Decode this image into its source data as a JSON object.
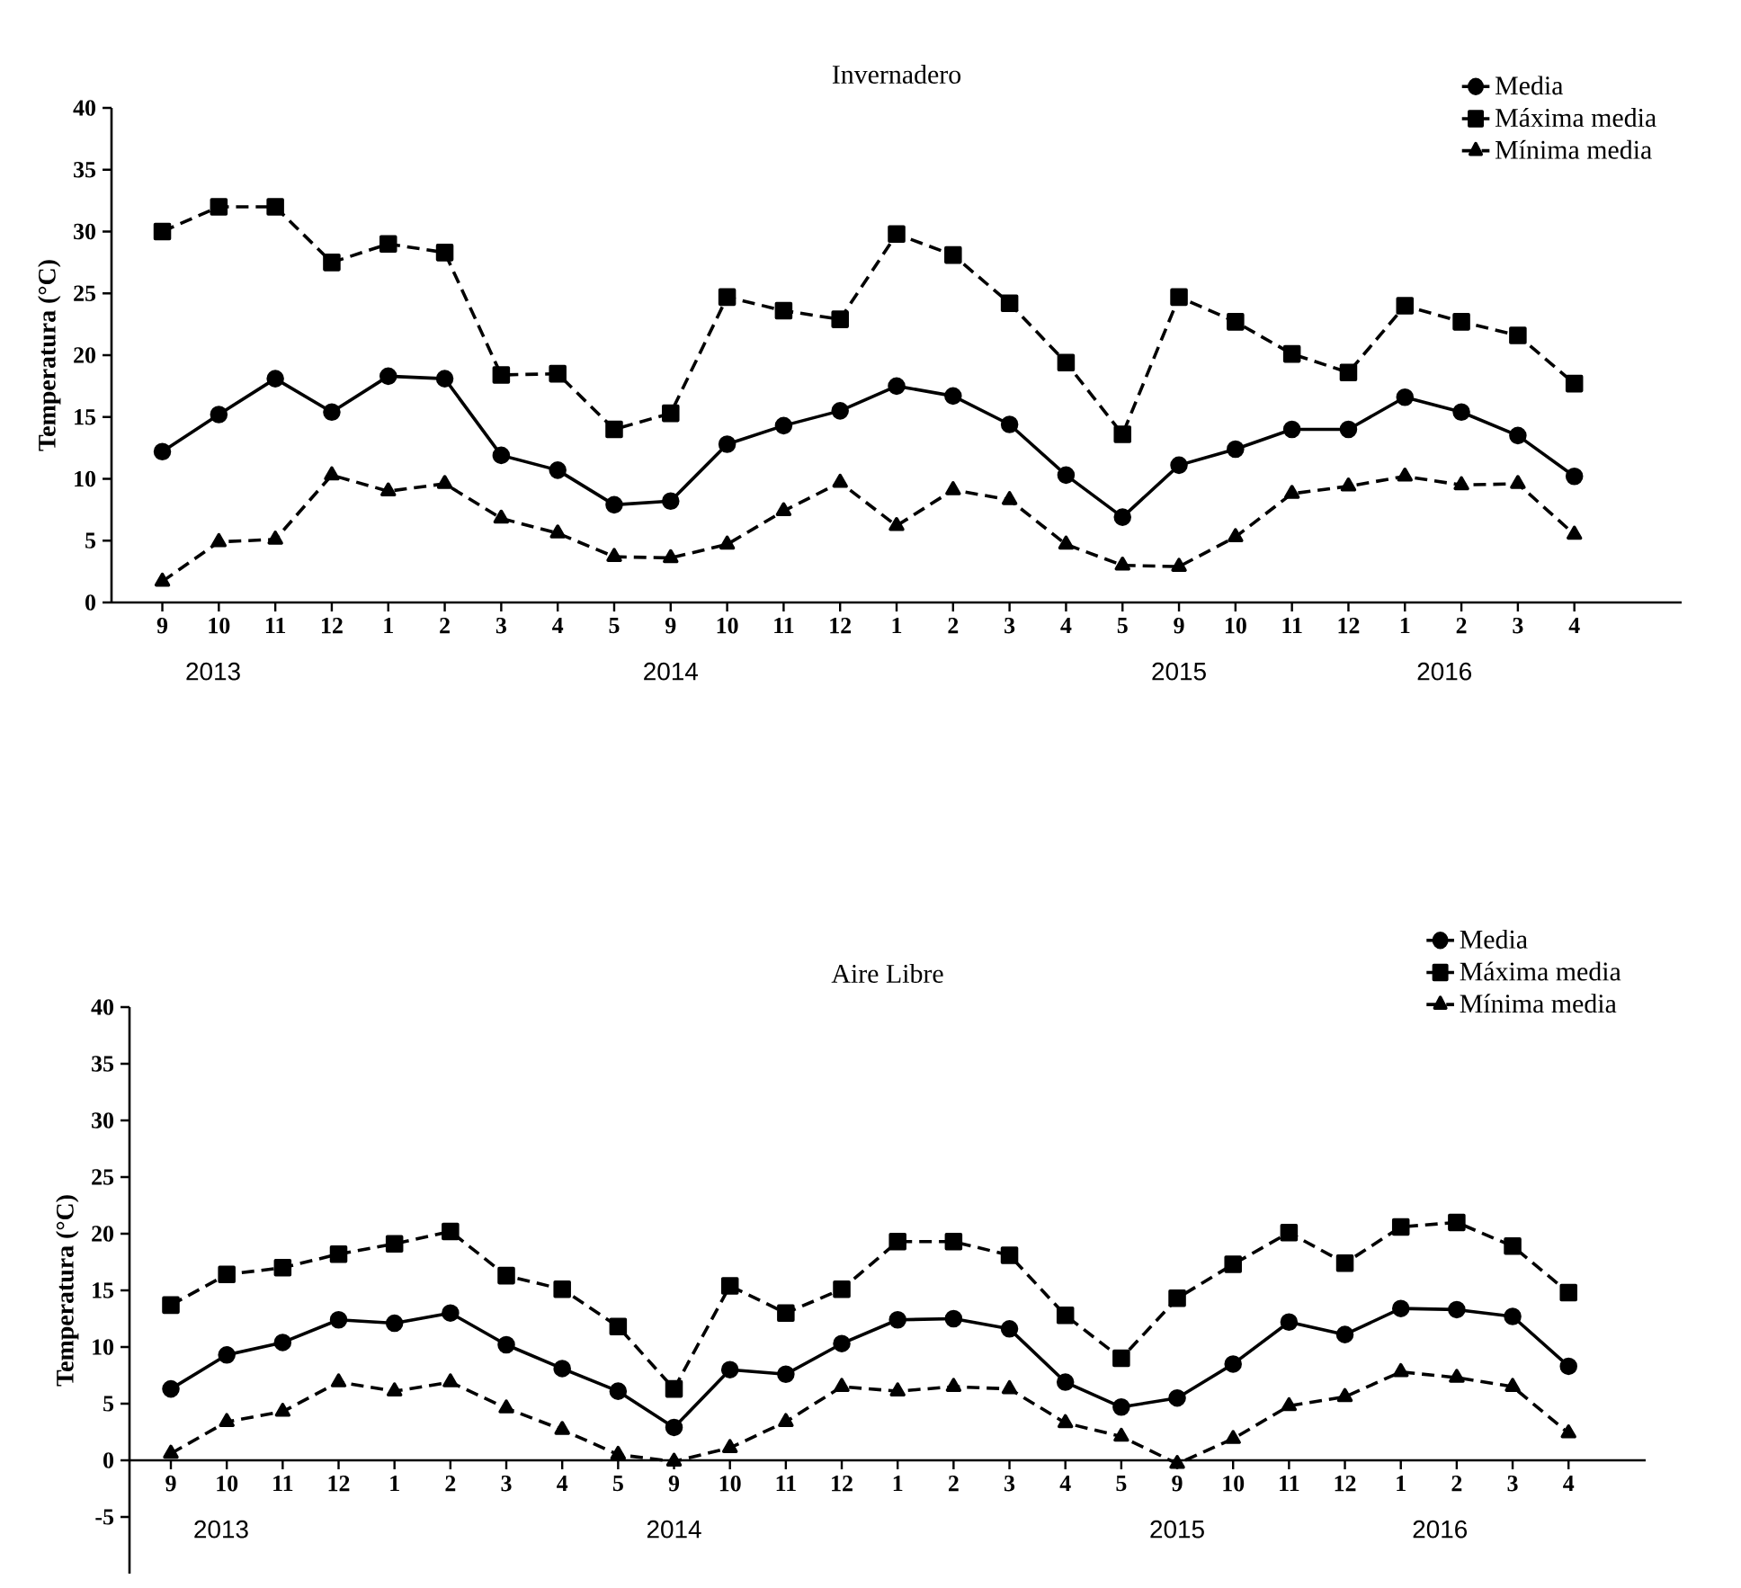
{
  "chart_data": [
    {
      "type": "line",
      "title": "Invernadero",
      "ylabel": "Temperatura (°C)",
      "categories": [
        "9",
        "10",
        "11",
        "12",
        "1",
        "2",
        "3",
        "4",
        "5",
        "9",
        "10",
        "11",
        "12",
        "1",
        "2",
        "3",
        "4",
        "5",
        "9",
        "10",
        "11",
        "12",
        "1",
        "2",
        "3",
        "4"
      ],
      "ylim": [
        0,
        40
      ],
      "yticks": [
        0,
        5,
        10,
        15,
        20,
        25,
        30,
        35,
        40
      ],
      "legend": "top right",
      "annotations": [
        "2013",
        "2014",
        "2015",
        "2016"
      ],
      "series": [
        {
          "name": "Media",
          "color": "#000000",
          "marker": "circle",
          "line_style": "solid",
          "values": [
            12.2,
            15.2,
            18.1,
            15.4,
            18.3,
            18.1,
            11.9,
            10.7,
            7.9,
            8.2,
            12.8,
            14.3,
            15.5,
            17.5,
            16.7,
            14.4,
            10.3,
            6.9,
            11.1,
            12.4,
            14.0,
            14.0,
            16.6,
            15.4,
            13.5,
            10.2
          ]
        },
        {
          "name": "Máxima media",
          "color": "#000000",
          "marker": "square",
          "line_style": "dashed",
          "values": [
            30,
            32,
            32,
            27.5,
            29,
            28.3,
            18.4,
            18.5,
            14,
            15.3,
            24.7,
            23.6,
            22.9,
            29.8,
            28.1,
            24.2,
            19.4,
            13.6,
            24.7,
            22.7,
            20.1,
            18.6,
            24,
            22.7,
            21.6,
            17.7
          ]
        },
        {
          "name": "Mínima media",
          "color": "#000000",
          "marker": "triangle",
          "line_style": "dashed",
          "values": [
            1.7,
            4.9,
            5.1,
            10.3,
            9,
            9.6,
            6.8,
            5.6,
            3.7,
            3.6,
            4.7,
            7.4,
            9.7,
            6.2,
            9.1,
            8.3,
            4.7,
            3,
            2.9,
            5.3,
            8.8,
            9.4,
            10.2,
            9.5,
            9.6,
            5.5
          ]
        }
      ]
    },
    {
      "type": "line",
      "title": "Aire Libre",
      "ylabel": "Temperatura (°C)",
      "categories": [
        "9",
        "10",
        "11",
        "12",
        "1",
        "2",
        "3",
        "4",
        "5",
        "9",
        "10",
        "11",
        "12",
        "1",
        "2",
        "3",
        "4",
        "5",
        "9",
        "10",
        "11",
        "12",
        "1",
        "2",
        "3",
        "4"
      ],
      "ylim": [
        -10,
        40
      ],
      "yticks": [
        -5,
        0,
        5,
        10,
        15,
        20,
        25,
        30,
        35,
        40
      ],
      "legend": "top right",
      "annotations": [
        "2013",
        "2014",
        "2015",
        "2016"
      ],
      "series": [
        {
          "name": "Media",
          "color": "#000000",
          "marker": "circle",
          "line_style": "solid",
          "values": [
            6.3,
            9.3,
            10.4,
            12.4,
            12.1,
            13.0,
            10.2,
            8.1,
            6.1,
            2.9,
            8.0,
            7.6,
            10.3,
            12.4,
            12.5,
            11.6,
            6.9,
            4.7,
            5.5,
            8.5,
            12.2,
            11.1,
            13.4,
            13.3,
            12.7,
            8.3
          ]
        },
        {
          "name": "Máxima media",
          "color": "#000000",
          "marker": "square",
          "line_style": "dashed",
          "values": [
            13.7,
            16.4,
            17,
            18.2,
            19.1,
            20.2,
            16.3,
            15.1,
            11.8,
            6.3,
            15.4,
            13,
            15.1,
            19.3,
            19.3,
            18.1,
            12.8,
            9,
            14.3,
            17.3,
            20.1,
            17.4,
            20.6,
            21,
            18.9,
            14.8
          ]
        },
        {
          "name": "Mínima media",
          "color": "#000000",
          "marker": "triangle",
          "line_style": "dashed",
          "values": [
            0.6,
            3.4,
            4.3,
            6.9,
            6.1,
            6.9,
            4.6,
            2.7,
            0.5,
            -0.1,
            1.1,
            3.4,
            6.5,
            6.1,
            6.5,
            6.3,
            3.3,
            2.1,
            -0.3,
            1.9,
            4.8,
            5.6,
            7.8,
            7.3,
            6.5,
            2.4
          ]
        }
      ]
    }
  ]
}
